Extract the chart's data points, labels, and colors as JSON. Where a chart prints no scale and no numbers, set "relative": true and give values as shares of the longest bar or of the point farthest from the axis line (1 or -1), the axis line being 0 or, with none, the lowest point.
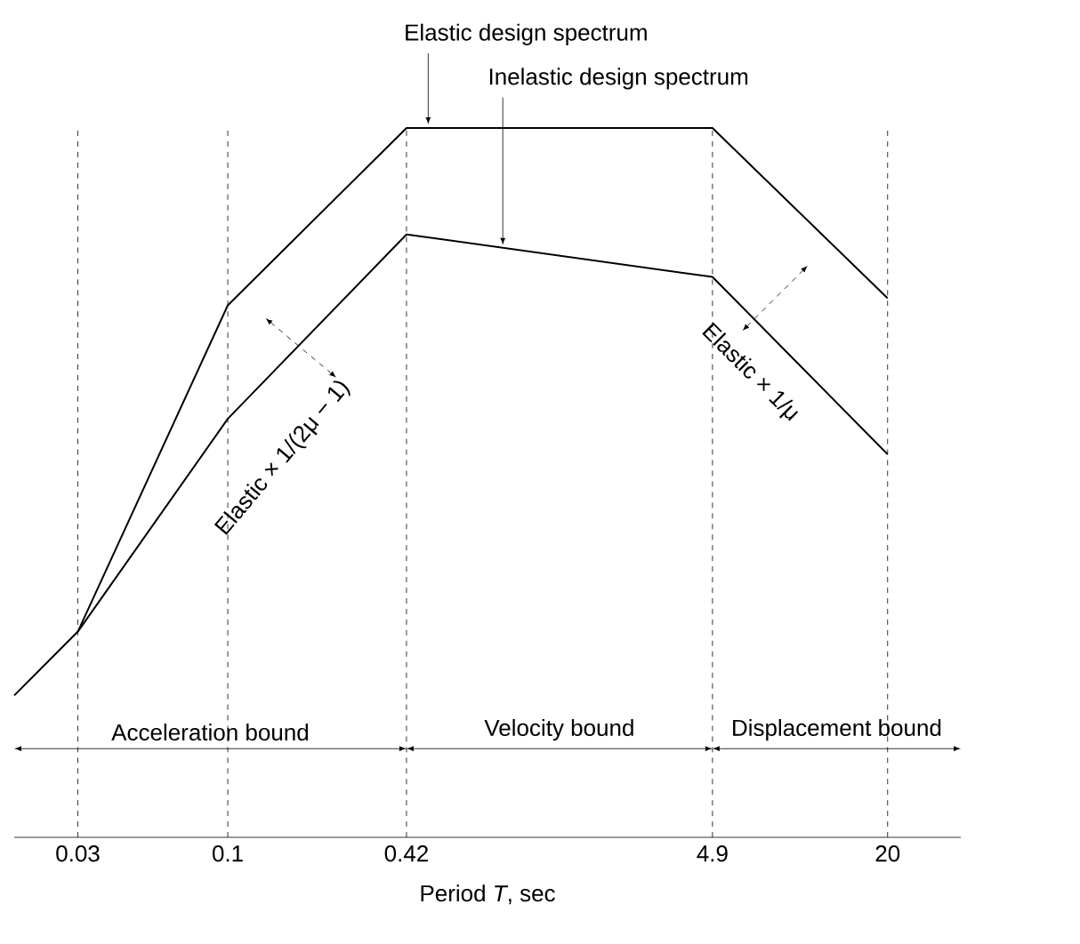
{
  "chart_data": {
    "type": "line",
    "relative": true,
    "xlabel": "Period *T*, sec",
    "log": "x",
    "xlim": [
      0.018,
      36
    ],
    "xticks": [
      0.03,
      0.1,
      0.42,
      4.9,
      20
    ],
    "grid": "x",
    "marker": "none",
    "line_style": "solid",
    "series": [
      {
        "color": "#000000",
        "x": [
          0.018,
          0.03,
          0.1,
          0.42,
          4.9,
          20
        ],
        "values": [
          0.2,
          0.29,
          0.75,
          1,
          1,
          0.76
        ]
      },
      {
        "color": "#000000",
        "x": [
          0.03,
          0.1,
          0.42,
          4.9,
          20
        ],
        "values": [
          0.29,
          0.59,
          0.85,
          0.79,
          0.54
        ]
      }
    ],
    "annotations": [
      {
        "text": "Elastic design spectrum",
        "x": 0.5,
        "y": 1
      },
      {
        "text": "Inelastic design spectrum",
        "x": 0.91,
        "y": 0.83
      },
      {
        "text": "Elastic × 1/(2μ − 1)",
        "x": 0.18,
        "y": 0.69
      },
      {
        "text": "Elastic × 1/μ",
        "x": 8.1,
        "y": 0.76
      },
      "Acceleration bound",
      "Velocity bound",
      "Displacement bound"
    ]
  }
}
